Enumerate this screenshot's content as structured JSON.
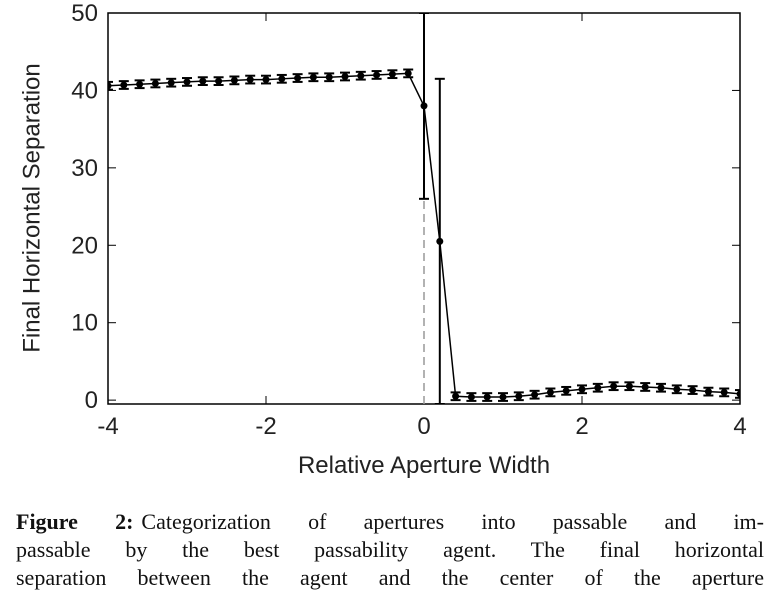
{
  "chart_data": {
    "type": "errorline",
    "xlabel": "Relative Aperture Width",
    "ylabel": "Final Horizontal Separation",
    "x": [
      -4,
      -3.8,
      -3.6,
      -3.4,
      -3.2,
      -3.0,
      -2.8,
      -2.6,
      -2.4,
      -2.2,
      -2.0,
      -1.8,
      -1.6,
      -1.4,
      -1.2,
      -1.0,
      -0.8,
      -0.6,
      -0.4,
      -0.2,
      0,
      0.2,
      0.4,
      0.6,
      0.8,
      1.0,
      1.2,
      1.4,
      1.6,
      1.8,
      2.0,
      2.2,
      2.4,
      2.6,
      2.8,
      3.0,
      3.2,
      3.4,
      3.6,
      3.8,
      4.0
    ],
    "values": [
      40.6,
      40.7,
      40.8,
      40.9,
      41.0,
      41.1,
      41.2,
      41.2,
      41.3,
      41.4,
      41.4,
      41.5,
      41.6,
      41.7,
      41.7,
      41.8,
      41.9,
      42.0,
      42.1,
      42.2,
      38.0,
      20.5,
      0.5,
      0.4,
      0.4,
      0.4,
      0.5,
      0.7,
      1.0,
      1.2,
      1.4,
      1.6,
      1.8,
      1.8,
      1.7,
      1.6,
      1.4,
      1.3,
      1.1,
      1.0,
      0.8
    ],
    "errors": [
      0.5,
      0.5,
      0.5,
      0.5,
      0.5,
      0.5,
      0.5,
      0.5,
      0.5,
      0.5,
      0.5,
      0.5,
      0.5,
      0.5,
      0.5,
      0.5,
      0.5,
      0.5,
      0.5,
      0.5,
      12,
      21,
      0.5,
      0.5,
      0.5,
      0.5,
      0.5,
      0.5,
      0.5,
      0.5,
      0.5,
      0.5,
      0.5,
      0.5,
      0.5,
      0.5,
      0.5,
      0.5,
      0.5,
      0.5,
      0.5
    ],
    "color": "#000000",
    "xlim": [
      -4,
      4
    ],
    "xticks": [
      -4,
      -2,
      0,
      2,
      4
    ],
    "ylim": [
      -0.5,
      50
    ],
    "yticks": [
      0,
      10,
      20,
      30,
      40,
      50
    ]
  },
  "caption": {
    "label": "Figure 2:",
    "lines": [
      "Categorization of apertures into passable and im-",
      "passable by the best passability agent. The final horizontal",
      "separation between the agent and the center of the aperture"
    ]
  }
}
